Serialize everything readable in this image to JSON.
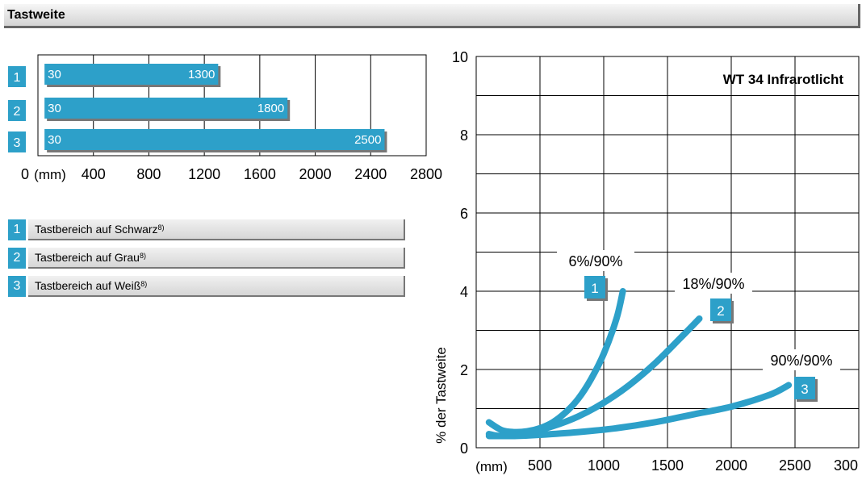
{
  "header": {
    "title": "Tastweite"
  },
  "legend": {
    "items": [
      {
        "num": "1",
        "label": "Tastbereich auf Schwarz",
        "note": "8)"
      },
      {
        "num": "2",
        "label": "Tastbereich auf Grau",
        "note": "8)"
      },
      {
        "num": "3",
        "label": "Tastbereich auf Weiß",
        "note": "8)"
      }
    ]
  },
  "chart_data": [
    {
      "type": "bar",
      "orientation": "horizontal",
      "categories": [
        "1",
        "2",
        "3"
      ],
      "range_start": [
        30,
        30,
        30
      ],
      "values": [
        1300,
        1800,
        2500
      ],
      "start_labels": [
        "30",
        "30",
        "30"
      ],
      "end_labels": [
        "1300",
        "1800",
        "2500"
      ],
      "xlim": [
        0,
        2800
      ],
      "x_unit": "(mm)",
      "x_ticks": [
        "0",
        "400",
        "800",
        "1200",
        "1600",
        "2000",
        "2400",
        "2800"
      ],
      "grid": true,
      "color": "#2da0c9"
    },
    {
      "type": "line",
      "title": "WT 34 Infrarotlicht",
      "xlabel": "(mm)",
      "ylabel": "% der Tastweite",
      "xlim": [
        0,
        3000
      ],
      "ylim": [
        0,
        10
      ],
      "x_ticks": [
        "500",
        "1000",
        "1500",
        "2000",
        "2500",
        "300"
      ],
      "y_ticks": [
        "0",
        "2",
        "4",
        "6",
        "8",
        "10"
      ],
      "grid": true,
      "color": "#2da0c9",
      "series": [
        {
          "name": "6%/90%",
          "num": "1",
          "x": [
            100,
            200,
            300,
            400,
            500,
            600,
            700,
            800,
            900,
            1000,
            1100,
            1150
          ],
          "y": [
            0.65,
            0.45,
            0.4,
            0.42,
            0.5,
            0.65,
            0.9,
            1.25,
            1.75,
            2.4,
            3.3,
            4.0
          ]
        },
        {
          "name": "18%/90%",
          "num": "2",
          "x": [
            100,
            200,
            400,
            600,
            800,
            1000,
            1200,
            1400,
            1600,
            1750
          ],
          "y": [
            0.35,
            0.3,
            0.38,
            0.55,
            0.8,
            1.15,
            1.6,
            2.15,
            2.8,
            3.3
          ]
        },
        {
          "name": "90%/90%",
          "num": "3",
          "x": [
            100,
            300,
            500,
            800,
            1100,
            1400,
            1700,
            2000,
            2300,
            2450
          ],
          "y": [
            0.3,
            0.3,
            0.33,
            0.4,
            0.5,
            0.65,
            0.85,
            1.05,
            1.35,
            1.6
          ]
        }
      ]
    }
  ]
}
